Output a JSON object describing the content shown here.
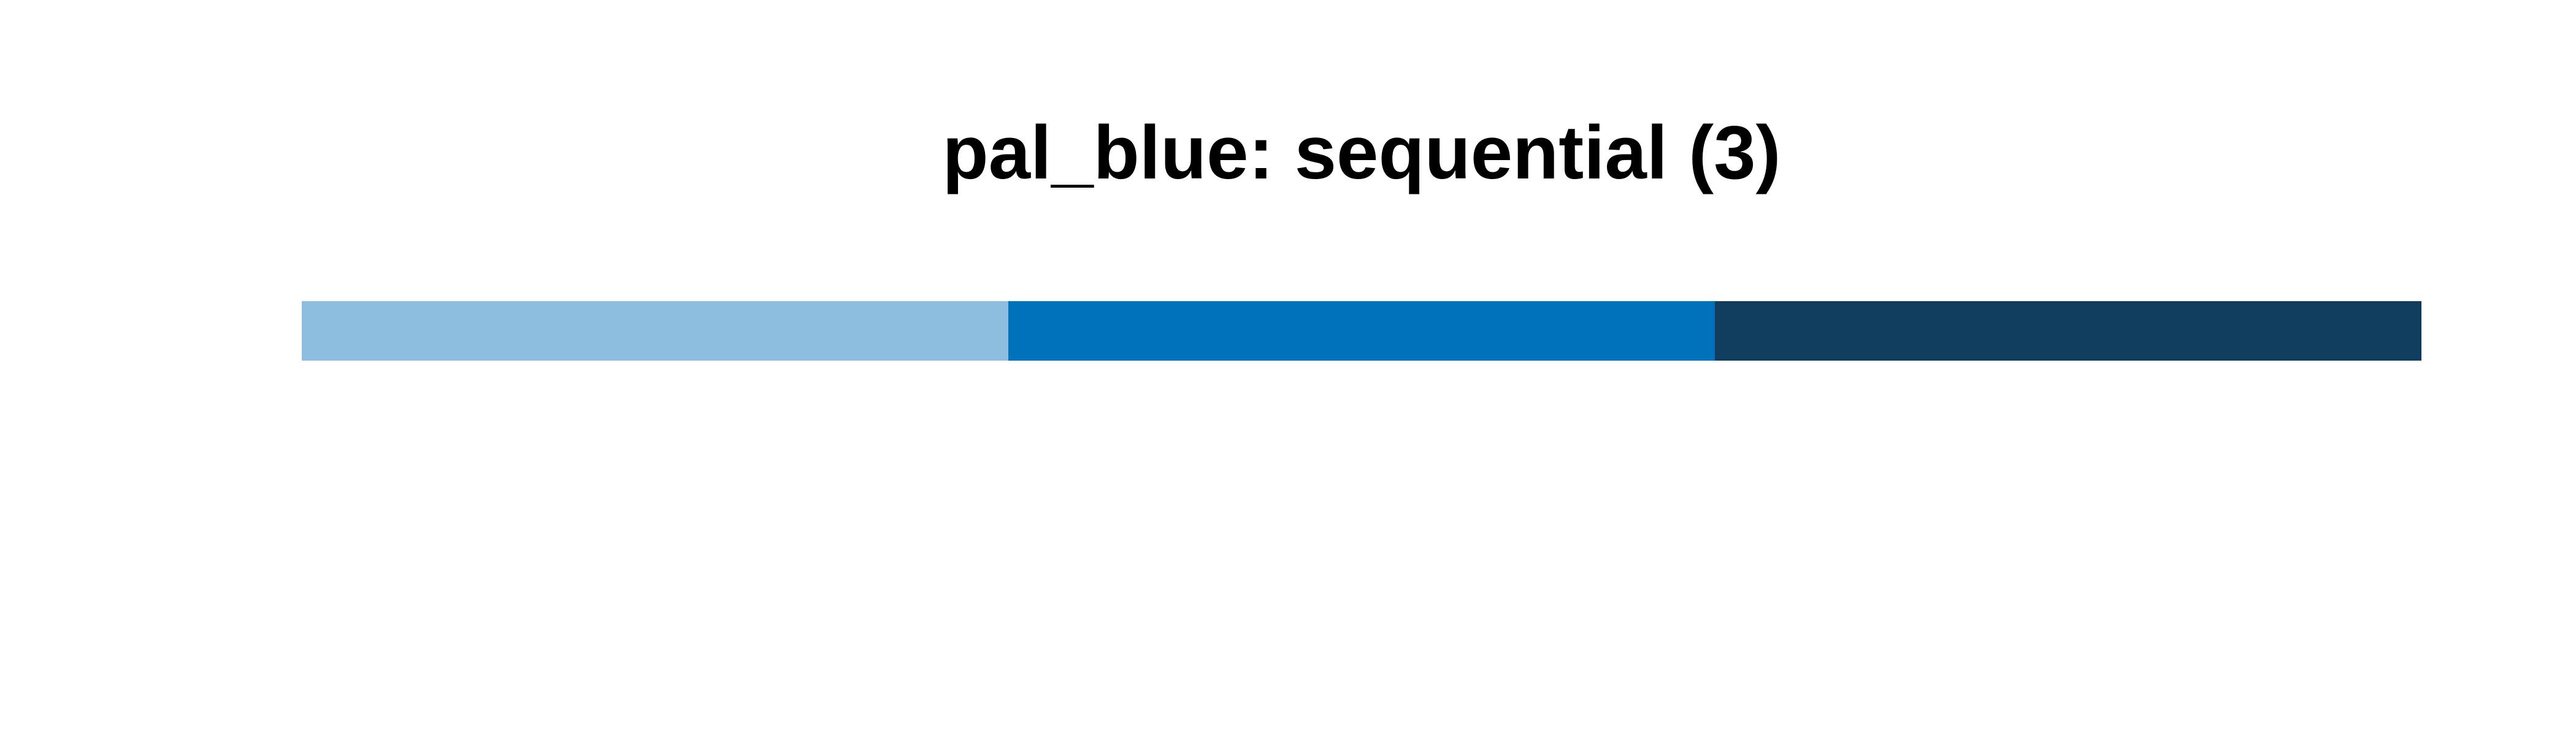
{
  "figure": {
    "background": "#ffffff",
    "title_color": "#000000"
  },
  "chart_data": {
    "type": "heatmap",
    "title": "pal_blue: sequential (3)",
    "palette_name": "pal_blue",
    "palette_kind": "sequential",
    "n_colors": 3,
    "swatches": [
      {
        "index": 1,
        "name": "light-blue",
        "hex": "#8EBEDF"
      },
      {
        "index": 2,
        "name": "medium-blue",
        "hex": "#0072BC"
      },
      {
        "index": 3,
        "name": "dark-navy",
        "hex": "#103C5E"
      }
    ],
    "legend": "none",
    "axes_visible": false,
    "grid": false
  }
}
